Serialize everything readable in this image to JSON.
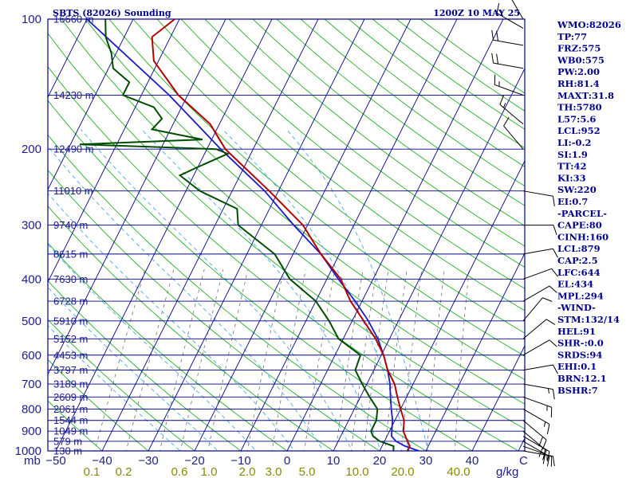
{
  "header": {
    "station": "SBTS (82026) Sounding",
    "time": "1200Z 10 MAY 25"
  },
  "indices": [
    "WMO:82026",
    "TP:77",
    "FRZ:575",
    "WB0:575",
    "PW:2.00",
    "RH:81.4",
    "MAXT:31.8",
    "TH:5780",
    "L57:5.6",
    "LCL:952",
    "LI:-0.2",
    "SI:1.9",
    "TT:42",
    "KI:33",
    "SW:220",
    "EI:0.7",
    "-PARCEL-",
    "CAPE:80",
    "CINH:160",
    "LCL:879",
    "CAP:2.5",
    "LFC:644",
    "EL:434",
    "MPL:294",
    "-WIND-",
    "STM:132/14",
    "HEL:91",
    "SHR-:0.0",
    "SRDS:94",
    "EHI:0.1",
    "BRN:12.1",
    "BSHR:7"
  ],
  "colors": {
    "frame": "#00008b",
    "isobar": "#00008b",
    "isotherm": "#00008b",
    "dry_adiabat": "#22b022",
    "moist_adiabat": "#4aa8e8",
    "mixing_ratio": "#707070",
    "temperature": "#b40000",
    "dewpoint": "#004d00",
    "parcel": "#1a1ac8",
    "wind_barb": "#000000",
    "label": "#1d1d8a",
    "mixing_label": "#8a8a00"
  },
  "chart_data": {
    "type": "skew-t log-p",
    "xunit": "C",
    "mixing_unit": "g/kg",
    "pressure_axis_prefix": "mb",
    "pressure_ticks": [
      100,
      200,
      300,
      400,
      500,
      600,
      700,
      800,
      900,
      1000
    ],
    "temperature_ticks": [
      -50,
      -40,
      -30,
      -20,
      -10,
      0,
      10,
      20,
      30,
      40
    ],
    "mixing_ratio_ticks": [
      "0.1",
      "0.2",
      "0.6",
      "1.0",
      "2.0",
      "3.0",
      "5.0",
      "10.0",
      "20.0",
      "40.0"
    ],
    "height_labels": [
      {
        "p": 100,
        "label": "16660 m"
      },
      {
        "p": 150,
        "label": "14230 m"
      },
      {
        "p": 200,
        "label": "12490 m"
      },
      {
        "p": 250,
        "label": "11010 m"
      },
      {
        "p": 300,
        "label": "9740 m"
      },
      {
        "p": 350,
        "label": "8615 m"
      },
      {
        "p": 400,
        "label": "7630 m"
      },
      {
        "p": 450,
        "label": "6728 m"
      },
      {
        "p": 500,
        "label": "5910 m"
      },
      {
        "p": 550,
        "label": "5152 m"
      },
      {
        "p": 600,
        "label": "4453 m"
      },
      {
        "p": 650,
        "label": "3797 m"
      },
      {
        "p": 700,
        "label": "3189 m"
      },
      {
        "p": 750,
        "label": "2609 m"
      },
      {
        "p": 800,
        "label": "2061 m"
      },
      {
        "p": 850,
        "label": "1544 m"
      },
      {
        "p": 900,
        "label": "1049 m"
      },
      {
        "p": 950,
        "label": "579 m"
      },
      {
        "p": 1000,
        "label": "130 m"
      }
    ],
    "temperature_profile": [
      [
        1000,
        26
      ],
      [
        975,
        26
      ],
      [
        950,
        25
      ],
      [
        925,
        24
      ],
      [
        900,
        23
      ],
      [
        850,
        22
      ],
      [
        800,
        20
      ],
      [
        750,
        18
      ],
      [
        700,
        16
      ],
      [
        650,
        13
      ],
      [
        600,
        10.5
      ],
      [
        550,
        7
      ],
      [
        500,
        2.5
      ],
      [
        450,
        -2.5
      ],
      [
        400,
        -7
      ],
      [
        350,
        -14
      ],
      [
        300,
        -21
      ],
      [
        250,
        -32
      ],
      [
        200,
        -46
      ],
      [
        175,
        -52
      ],
      [
        150,
        -62
      ],
      [
        125,
        -71
      ],
      [
        110,
        -74
      ],
      [
        100,
        -71
      ]
    ],
    "dewpoint_profile": [
      [
        1000,
        23
      ],
      [
        975,
        22.5
      ],
      [
        950,
        19
      ],
      [
        925,
        17
      ],
      [
        900,
        16
      ],
      [
        850,
        16
      ],
      [
        800,
        15
      ],
      [
        750,
        12
      ],
      [
        700,
        9
      ],
      [
        650,
        6
      ],
      [
        600,
        5.5
      ],
      [
        550,
        -1
      ],
      [
        500,
        -5
      ],
      [
        450,
        -10
      ],
      [
        400,
        -18
      ],
      [
        350,
        -24
      ],
      [
        300,
        -35
      ],
      [
        275,
        -37
      ],
      [
        250,
        -47
      ],
      [
        230,
        -53
      ],
      [
        220,
        -50
      ],
      [
        205,
        -45
      ],
      [
        200,
        -48
      ],
      [
        195,
        -78
      ],
      [
        190,
        -52
      ],
      [
        180,
        -64
      ],
      [
        170,
        -63
      ],
      [
        160,
        -66
      ],
      [
        150,
        -74
      ],
      [
        140,
        -74
      ],
      [
        130,
        -79
      ],
      [
        120,
        -81
      ],
      [
        110,
        -84
      ],
      [
        100,
        -86
      ]
    ],
    "parcel_profile": [
      [
        1000,
        28.5
      ],
      [
        975,
        25
      ],
      [
        950,
        22.5
      ],
      [
        925,
        21
      ],
      [
        900,
        20.5
      ],
      [
        850,
        19.5
      ],
      [
        800,
        18
      ],
      [
        750,
        16.5
      ],
      [
        700,
        15
      ],
      [
        650,
        13
      ],
      [
        600,
        10.5
      ],
      [
        550,
        7.5
      ],
      [
        500,
        3.5
      ],
      [
        450,
        -1.5
      ],
      [
        400,
        -7.5
      ],
      [
        350,
        -14
      ],
      [
        300,
        -23
      ],
      [
        250,
        -33
      ],
      [
        200,
        -47
      ],
      [
        150,
        -64
      ],
      [
        100,
        -90
      ]
    ],
    "wind_barbs": [
      {
        "p": 1000,
        "dir": 100,
        "spd": 10
      },
      {
        "p": 975,
        "dir": 110,
        "spd": 15
      },
      {
        "p": 950,
        "dir": 120,
        "spd": 20
      },
      {
        "p": 925,
        "dir": 120,
        "spd": 20
      },
      {
        "p": 900,
        "dir": 130,
        "spd": 20
      },
      {
        "p": 850,
        "dir": 130,
        "spd": 20
      },
      {
        "p": 800,
        "dir": 120,
        "spd": 15
      },
      {
        "p": 750,
        "dir": 110,
        "spd": 15
      },
      {
        "p": 700,
        "dir": 100,
        "spd": 15
      },
      {
        "p": 650,
        "dir": 80,
        "spd": 10
      },
      {
        "p": 600,
        "dir": 60,
        "spd": 10
      },
      {
        "p": 550,
        "dir": 50,
        "spd": 10
      },
      {
        "p": 500,
        "dir": 40,
        "spd": 10
      },
      {
        "p": 450,
        "dir": 60,
        "spd": 10
      },
      {
        "p": 400,
        "dir": 70,
        "spd": 10
      },
      {
        "p": 350,
        "dir": 80,
        "spd": 10
      },
      {
        "p": 300,
        "dir": 90,
        "spd": 10
      },
      {
        "p": 250,
        "dir": 100,
        "spd": 10
      },
      {
        "p": 200,
        "dir": 320,
        "spd": 10
      },
      {
        "p": 175,
        "dir": 310,
        "spd": 15
      },
      {
        "p": 150,
        "dir": 290,
        "spd": 15
      },
      {
        "p": 130,
        "dir": 280,
        "spd": 20
      },
      {
        "p": 115,
        "dir": 280,
        "spd": 20
      },
      {
        "p": 105,
        "dir": 300,
        "spd": 15
      },
      {
        "p": 100,
        "dir": 330,
        "spd": 10
      }
    ]
  }
}
